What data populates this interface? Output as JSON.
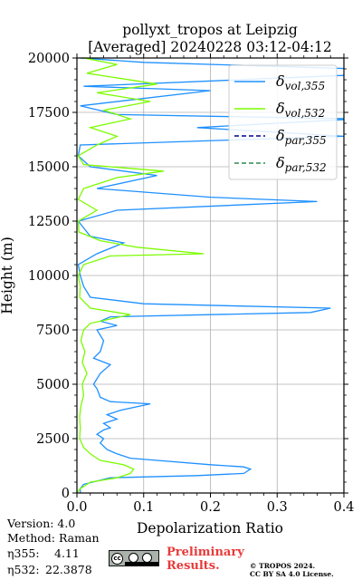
{
  "chart_data": {
    "type": "line",
    "title": "pollyxt_tropos at Leipzig",
    "subtitle": "[Averaged] 20240228 03:12-04:12",
    "xlabel": "Depolarization Ratio",
    "ylabel": "Height (m)",
    "xlim": [
      0,
      0.4
    ],
    "ylim": [
      0,
      20000
    ],
    "xticks": [
      "0.0",
      "0.1",
      "0.2",
      "0.3",
      "0.4"
    ],
    "yticks": [
      "0",
      "2500",
      "5000",
      "7500",
      "10000",
      "12500",
      "15000",
      "17500",
      "20000"
    ],
    "grid": true,
    "legend_position": "top-right",
    "series": [
      {
        "name": "δvol,355",
        "color": "#1e90ff",
        "points": [
          [
            0.005,
            0
          ],
          [
            0.005,
            200
          ],
          [
            0.01,
            400
          ],
          [
            0.05,
            700
          ],
          [
            0.18,
            800
          ],
          [
            0.25,
            900
          ],
          [
            0.255,
            1000
          ],
          [
            0.26,
            1100
          ],
          [
            0.25,
            1200
          ],
          [
            0.2,
            1300
          ],
          [
            0.12,
            1500
          ],
          [
            0.08,
            1600
          ],
          [
            0.06,
            1800
          ],
          [
            0.045,
            2000
          ],
          [
            0.035,
            2300
          ],
          [
            0.04,
            2500
          ],
          [
            0.03,
            2700
          ],
          [
            0.04,
            2900
          ],
          [
            0.05,
            3000
          ],
          [
            0.04,
            3200
          ],
          [
            0.06,
            3400
          ],
          [
            0.045,
            3600
          ],
          [
            0.065,
            3800
          ],
          [
            0.11,
            4100
          ],
          [
            0.05,
            4200
          ],
          [
            0.035,
            4400
          ],
          [
            0.03,
            4800
          ],
          [
            0.025,
            5000
          ],
          [
            0.035,
            5500
          ],
          [
            0.05,
            5900
          ],
          [
            0.025,
            6200
          ],
          [
            0.035,
            6500
          ],
          [
            0.04,
            7000
          ],
          [
            0.03,
            7500
          ],
          [
            0.06,
            7700
          ],
          [
            0.035,
            7900
          ],
          [
            0.05,
            8100
          ],
          [
            0.35,
            8300
          ],
          [
            0.38,
            8500
          ],
          [
            0.1,
            8700
          ],
          [
            0.02,
            9000
          ],
          [
            0.01,
            9500
          ],
          [
            0.005,
            10000
          ],
          [
            0.002,
            10500
          ],
          [
            0.03,
            11000
          ],
          [
            0.07,
            11500
          ],
          [
            0.02,
            11800
          ],
          [
            0.002,
            12500
          ],
          [
            0.06,
            13000
          ],
          [
            0.36,
            13400
          ],
          [
            0.2,
            13600
          ],
          [
            0.03,
            14000
          ],
          [
            0.12,
            14600
          ],
          [
            0.02,
            15000
          ],
          [
            0.002,
            15500
          ],
          [
            0.005,
            16000
          ],
          [
            0.4,
            16400
          ],
          [
            0.18,
            16800
          ],
          [
            0.42,
            17200
          ],
          [
            0.06,
            17400
          ],
          [
            0.005,
            17800
          ],
          [
            0.2,
            18500
          ],
          [
            0.01,
            18700
          ],
          [
            0.4,
            19200
          ],
          [
            0.42,
            19500
          ],
          [
            0.1,
            19800
          ],
          [
            0.005,
            20000
          ]
        ]
      },
      {
        "name": "δvol,532",
        "color": "#7cfc00",
        "points": [
          [
            0.0,
            0
          ],
          [
            0.005,
            200
          ],
          [
            0.02,
            500
          ],
          [
            0.06,
            700
          ],
          [
            0.08,
            900
          ],
          [
            0.085,
            1100
          ],
          [
            0.07,
            1300
          ],
          [
            0.035,
            1500
          ],
          [
            0.02,
            1800
          ],
          [
            0.01,
            2100
          ],
          [
            0.004,
            2500
          ],
          [
            0.005,
            3000
          ],
          [
            0.004,
            3500
          ],
          [
            0.006,
            4000
          ],
          [
            0.01,
            4500
          ],
          [
            0.008,
            5000
          ],
          [
            0.015,
            5500
          ],
          [
            0.008,
            6000
          ],
          [
            0.012,
            6500
          ],
          [
            0.006,
            7000
          ],
          [
            0.01,
            7500
          ],
          [
            0.02,
            7800
          ],
          [
            0.05,
            8000
          ],
          [
            0.08,
            8200
          ],
          [
            0.02,
            8500
          ],
          [
            0.004,
            9000
          ],
          [
            0.005,
            9500
          ],
          [
            0.002,
            10000
          ],
          [
            0.01,
            10500
          ],
          [
            0.05,
            10900
          ],
          [
            0.19,
            11000
          ],
          [
            0.09,
            11300
          ],
          [
            0.035,
            11600
          ],
          [
            0.003,
            12000
          ],
          [
            0.002,
            12500
          ],
          [
            0.03,
            13000
          ],
          [
            0.002,
            13500
          ],
          [
            0.01,
            14000
          ],
          [
            0.06,
            14500
          ],
          [
            0.13,
            14800
          ],
          [
            0.01,
            15100
          ],
          [
            0.002,
            15500
          ],
          [
            0.03,
            16000
          ],
          [
            0.06,
            16400
          ],
          [
            0.02,
            16800
          ],
          [
            0.08,
            17200
          ],
          [
            0.04,
            17600
          ],
          [
            0.11,
            18000
          ],
          [
            0.03,
            18400
          ],
          [
            0.12,
            18800
          ],
          [
            0.015,
            19300
          ],
          [
            0.06,
            19700
          ],
          [
            0.01,
            20000
          ]
        ]
      },
      {
        "name": "δpar,355",
        "color": "#00008b",
        "points": []
      },
      {
        "name": "δpar,532",
        "color": "#2e8b57",
        "points": []
      }
    ]
  },
  "info": {
    "version": "Version: 4.0",
    "method": "Method: Raman",
    "eta355_label": "η355:",
    "eta355_value": "4.11",
    "eta532_label": "η532:",
    "eta532_value": "22.3878"
  },
  "license": {
    "badge_text": "cc",
    "preliminary": "Preliminary\nResults.",
    "copyright": "© TROPOS 2024.\nCC BY SA 4.0 License."
  }
}
